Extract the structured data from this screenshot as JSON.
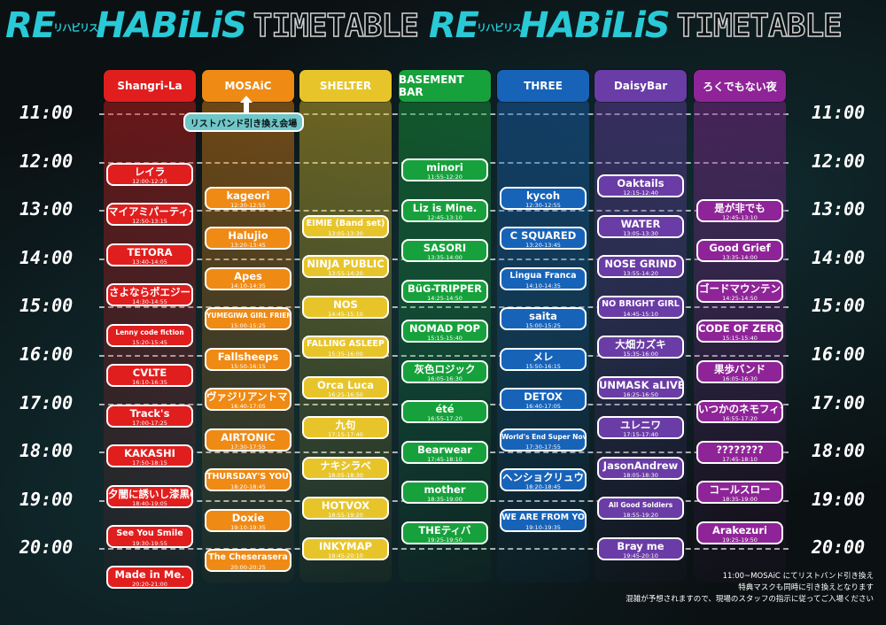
{
  "header": {
    "logo_main": "RE",
    "logo_sub": "リハビリス",
    "logo_end": "HABiLiS",
    "timetable_label": "TIMETABLE"
  },
  "times": [
    "11:00",
    "12:00",
    "13:00",
    "14:00",
    "15:00",
    "16:00",
    "17:00",
    "18:00",
    "19:00",
    "20:00"
  ],
  "wristband_label": "リストバンド引き換え会場",
  "venues": [
    {
      "name": "Shangri-La",
      "color": "#e01e1e",
      "acts": [
        {
          "name": "レイラ",
          "time": "12:00-12:25"
        },
        {
          "name": "マイアミパーティー",
          "time": "12:50-13:15"
        },
        {
          "name": "TETORA",
          "time": "13:40-14:05"
        },
        {
          "name": "さよならポエジー",
          "time": "14:30-14:55"
        },
        {
          "name": "Lenny code fiction",
          "time": "15:20-15:45"
        },
        {
          "name": "CVLTE",
          "time": "16:10-16:35"
        },
        {
          "name": "Track's",
          "time": "17:00-17:25"
        },
        {
          "name": "KAKASHI",
          "time": "17:50-18:15"
        },
        {
          "name": "夕闇に誘いし漆黒の天使達",
          "time": "18:40-19:05"
        },
        {
          "name": "See You Smile",
          "time": "19:30-19:55"
        },
        {
          "name": "Made in Me.",
          "time": "20:20-21:00"
        }
      ]
    },
    {
      "name": "MOSAiC",
      "color": "#ef8a14",
      "acts": [
        {
          "name": "kageori",
          "time": "12:30-12:55"
        },
        {
          "name": "Halujio",
          "time": "13:20-13:45"
        },
        {
          "name": "Apes",
          "time": "14:10-14:35"
        },
        {
          "name": "YUMEGIWA GIRL FRIEND",
          "time": "15:00-15:25"
        },
        {
          "name": "Fallsheeps",
          "time": "15:50-16:15"
        },
        {
          "name": "ヴァジリアントマト",
          "time": "16:40-17:05"
        },
        {
          "name": "AIRTONIC",
          "time": "17:30-17:55"
        },
        {
          "name": "THURSDAY'S YOUTH",
          "time": "18:20-18:45"
        },
        {
          "name": "Doxie",
          "time": "19:10-19:35"
        },
        {
          "name": "The Cheserasera",
          "time": "20:00-20:25"
        }
      ]
    },
    {
      "name": "SHELTER",
      "color": "#e7c52a",
      "acts": [
        {
          "name": "EIMIE (Band set)",
          "time": "13:05-13:30"
        },
        {
          "name": "NINJA PUBLIC",
          "time": "13:55-14:20"
        },
        {
          "name": "NOS",
          "time": "14:45-15:10"
        },
        {
          "name": "FALLING ASLEEP",
          "time": "15:35-16:00"
        },
        {
          "name": "Orca Luca",
          "time": "16:25-16:50"
        },
        {
          "name": "九句",
          "time": "17:15-17:40"
        },
        {
          "name": "ナキシラベ",
          "time": "18:05-18:30"
        },
        {
          "name": "HOTVOX",
          "time": "18:55-19:20"
        },
        {
          "name": "INKYMAP",
          "time": "19:45-20:10"
        }
      ]
    },
    {
      "name": "BASEMENT BAR",
      "color": "#17a13c",
      "acts": [
        {
          "name": "minori",
          "time": "11:55-12:20"
        },
        {
          "name": "Liz is Mine.",
          "time": "12:45-13:10"
        },
        {
          "name": "SASORI",
          "time": "13:35-14:00"
        },
        {
          "name": "BüG-TRIPPER",
          "time": "14:25-14:50"
        },
        {
          "name": "NOMAD POP",
          "time": "15:15-15:40"
        },
        {
          "name": "灰色ロジック",
          "time": "16:05-16:30"
        },
        {
          "name": "été",
          "time": "16:55-17:20"
        },
        {
          "name": "Bearwear",
          "time": "17:45-18:10"
        },
        {
          "name": "mother",
          "time": "18:35-19:00"
        },
        {
          "name": "THEティバ",
          "time": "19:25-19:50"
        }
      ]
    },
    {
      "name": "THREE",
      "color": "#1763b8",
      "acts": [
        {
          "name": "kycoh",
          "time": "12:30-12:55"
        },
        {
          "name": "C SQUARED",
          "time": "13:20-13:45"
        },
        {
          "name": "Lingua Franca",
          "time": "14:10-14:35"
        },
        {
          "name": "saita",
          "time": "15:00-15:25"
        },
        {
          "name": "メレ",
          "time": "15:50-16:15"
        },
        {
          "name": "DETOX",
          "time": "16:40-17:05"
        },
        {
          "name": "World's End Super Nova",
          "time": "17:30-17:55"
        },
        {
          "name": "ヘンショクリュウ",
          "time": "18:20-18:45"
        },
        {
          "name": "WE ARE FROM YOU",
          "time": "19:10-19:35"
        }
      ]
    },
    {
      "name": "DaisyBar",
      "color": "#6a3ca6",
      "acts": [
        {
          "name": "Oaktails",
          "time": "12:15-12:40"
        },
        {
          "name": "WATER",
          "time": "13:05-13:30"
        },
        {
          "name": "NOSE GRIND",
          "time": "13:55-14:20"
        },
        {
          "name": "NO BRIGHT GIRL",
          "time": "14:45-15:10"
        },
        {
          "name": "大畑カズキ",
          "time": "15:35-16:00"
        },
        {
          "name": "UNMASK aLIVE",
          "time": "16:25-16:50"
        },
        {
          "name": "ユレニワ",
          "time": "17:15-17:40"
        },
        {
          "name": "JasonAndrew",
          "time": "18:05-18:30"
        },
        {
          "name": "All Good Soldiers",
          "time": "18:55-19:20"
        },
        {
          "name": "Bray me",
          "time": "19:45-20:10"
        }
      ]
    },
    {
      "name": "ろくでもない夜",
      "color": "#8e2497",
      "acts": [
        {
          "name": "是が非でも",
          "time": "12:45-13:10"
        },
        {
          "name": "Good Grief",
          "time": "13:35-14:00"
        },
        {
          "name": "ゴードマウンテン",
          "time": "14:25-14:50"
        },
        {
          "name": "CODE OF ZERO",
          "time": "15:15-15:40"
        },
        {
          "name": "果歩バンド",
          "time": "16:05-16:30"
        },
        {
          "name": "いつかのネモフィラ",
          "time": "16:55-17:20"
        },
        {
          "name": "????????",
          "time": "17:45-18:10"
        },
        {
          "name": "コールスロー",
          "time": "18:35-19:00"
        },
        {
          "name": "Arakezuri",
          "time": "19:25-19:50"
        }
      ]
    }
  ],
  "notes": [
    "11:00~MOSAiC にてリストバンド引き換え",
    "特典マスクも同時に引き換えとなります",
    "混雑が予想されますので、現場のスタッフの指示に従ってご入場ください"
  ]
}
